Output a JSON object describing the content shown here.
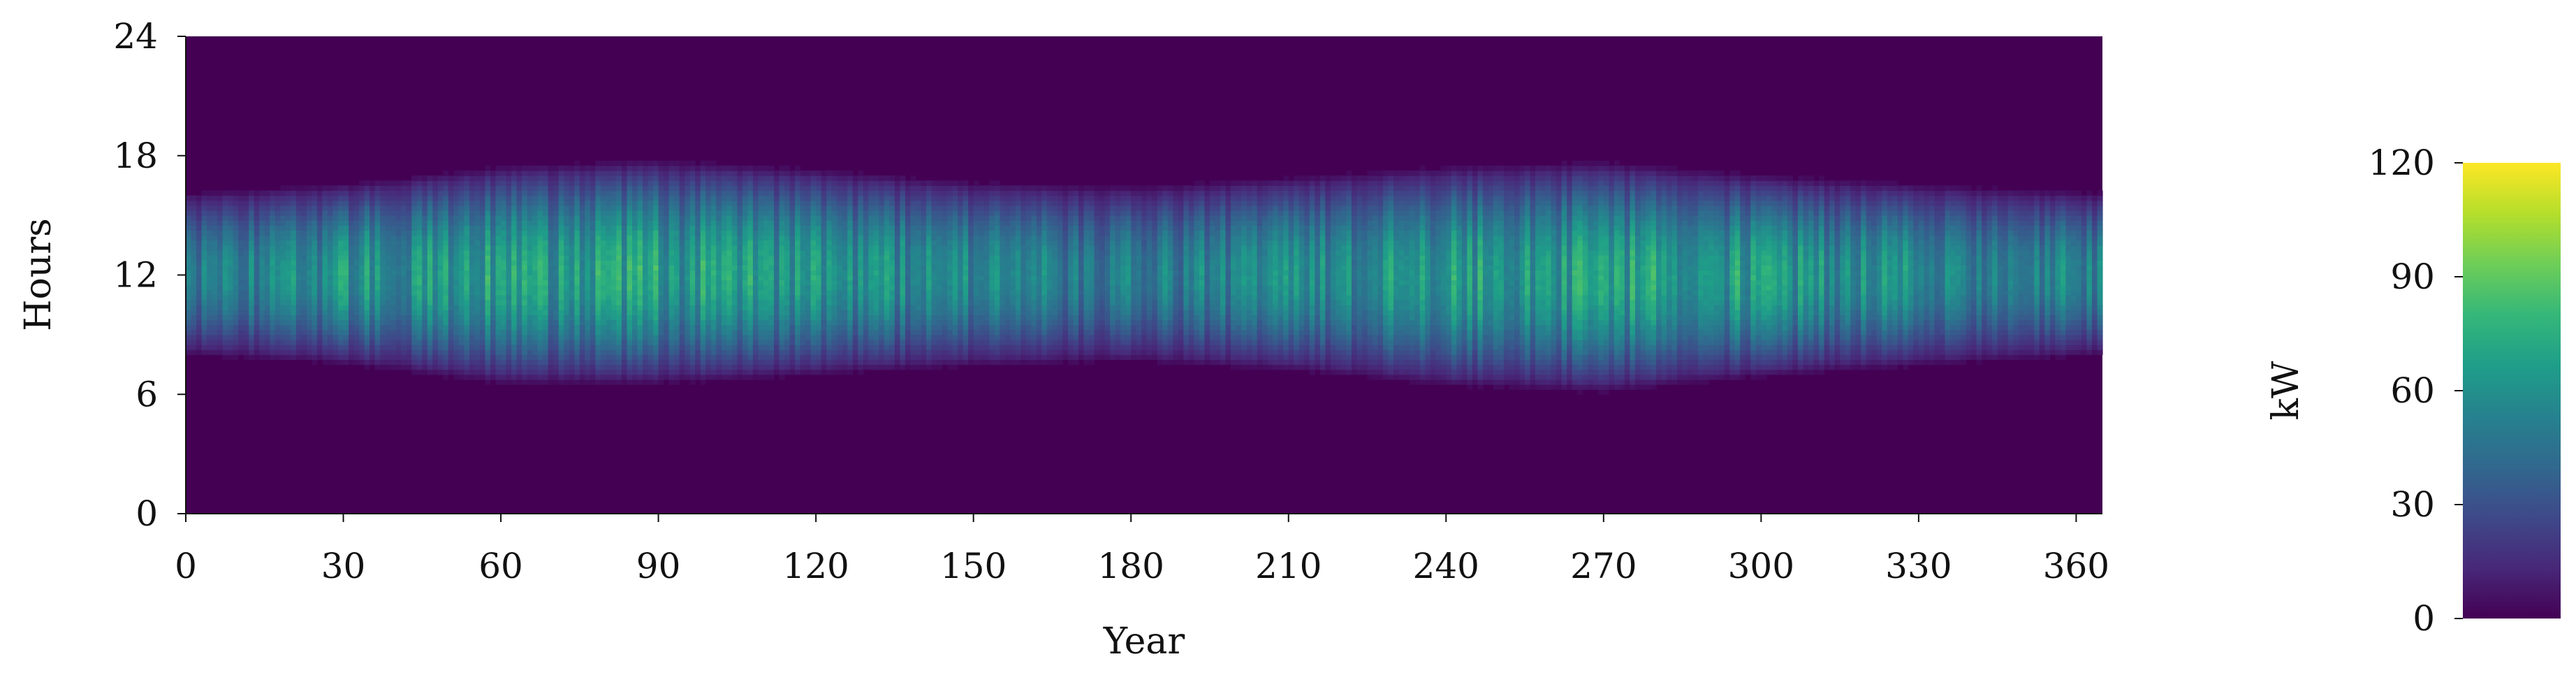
{
  "chart_data": {
    "type": "heatmap",
    "title": "",
    "xlabel": "Year",
    "ylabel": "Hours",
    "xlim": [
      0,
      365
    ],
    "ylim": [
      0,
      24
    ],
    "xticks": [
      0,
      30,
      60,
      90,
      120,
      150,
      180,
      210,
      240,
      270,
      300,
      330,
      360
    ],
    "yticks": [
      0,
      6,
      12,
      18,
      24
    ],
    "colorbar": {
      "label": "kW",
      "min": 0,
      "max": 120,
      "ticks": [
        0,
        30,
        60,
        90,
        120
      ],
      "colormap": "viridis"
    },
    "daily_profile": {
      "x_days": [
        0,
        30,
        60,
        90,
        120,
        150,
        180,
        210,
        240,
        270,
        300,
        330,
        365
      ],
      "sunrise_hour": [
        8.3,
        7.9,
        7.0,
        7.0,
        7.4,
        7.8,
        8.0,
        7.6,
        6.9,
        6.6,
        7.3,
        7.8,
        8.3
      ],
      "sunset_hour": [
        15.8,
        16.2,
        17.0,
        17.3,
        16.9,
        16.3,
        16.1,
        16.5,
        17.0,
        17.2,
        16.6,
        16.2,
        15.8
      ],
      "peak_hour": [
        12,
        12,
        12,
        12,
        12,
        12,
        12,
        12,
        12,
        12,
        12,
        12,
        12
      ],
      "peak_kw": [
        68,
        82,
        88,
        90,
        84,
        72,
        66,
        74,
        88,
        92,
        86,
        76,
        70
      ]
    }
  },
  "colors": {
    "background": "#440154",
    "viridis": [
      "#440154",
      "#482878",
      "#3e4989",
      "#31688e",
      "#26828e",
      "#1f9e89",
      "#35b779",
      "#6ece58",
      "#b5de2b",
      "#fde725"
    ]
  }
}
